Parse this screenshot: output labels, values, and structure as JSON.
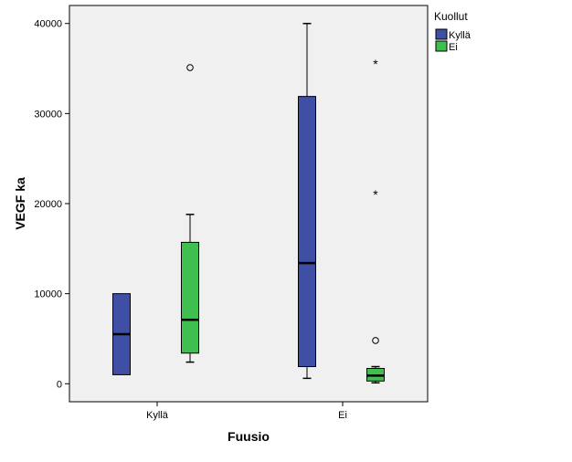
{
  "chart_data": {
    "type": "boxplot",
    "title": "",
    "xlabel": "Fuusio",
    "ylabel": "VEGF ka",
    "ylim": [
      -2000,
      42000
    ],
    "yticks": [
      0,
      10000,
      20000,
      30000,
      40000
    ],
    "ytick_labels": [
      "0",
      "10000",
      "20000",
      "30000",
      "40000"
    ],
    "categories": [
      "Kyllä",
      "Ei"
    ],
    "legend": {
      "title": "Kuollut",
      "position": "right",
      "entries": [
        {
          "label": "Kyllä",
          "color": "#3F4FA5"
        },
        {
          "label": "Ei",
          "color": "#3FBF4F"
        }
      ]
    },
    "series": [
      {
        "name": "Kyllä",
        "color": "#3F4FA5",
        "boxes": [
          {
            "category": "Kyllä",
            "whisker_low": 1000,
            "q1": 1000,
            "median": 5500,
            "q3": 10000,
            "whisker_high": 10000,
            "outliers": [],
            "extremes": []
          },
          {
            "category": "Ei",
            "whisker_low": 600,
            "q1": 1900,
            "median": 13400,
            "q3": 31900,
            "whisker_high": 40000,
            "outliers": [],
            "extremes": []
          }
        ]
      },
      {
        "name": "Ei",
        "color": "#3FBF4F",
        "boxes": [
          {
            "category": "Kyllä",
            "whisker_low": 2400,
            "q1": 3400,
            "median": 7100,
            "q3": 15700,
            "whisker_high": 18800,
            "outliers": [
              35100
            ],
            "extremes": []
          },
          {
            "category": "Ei",
            "whisker_low": 100,
            "q1": 300,
            "median": 900,
            "q3": 1700,
            "whisker_high": 1900,
            "outliers": [
              4800
            ],
            "extremes": [
              21100,
              35600
            ]
          }
        ]
      }
    ],
    "colors": {
      "plot_background": "#F0F0F0",
      "axis": "#000000"
    }
  }
}
